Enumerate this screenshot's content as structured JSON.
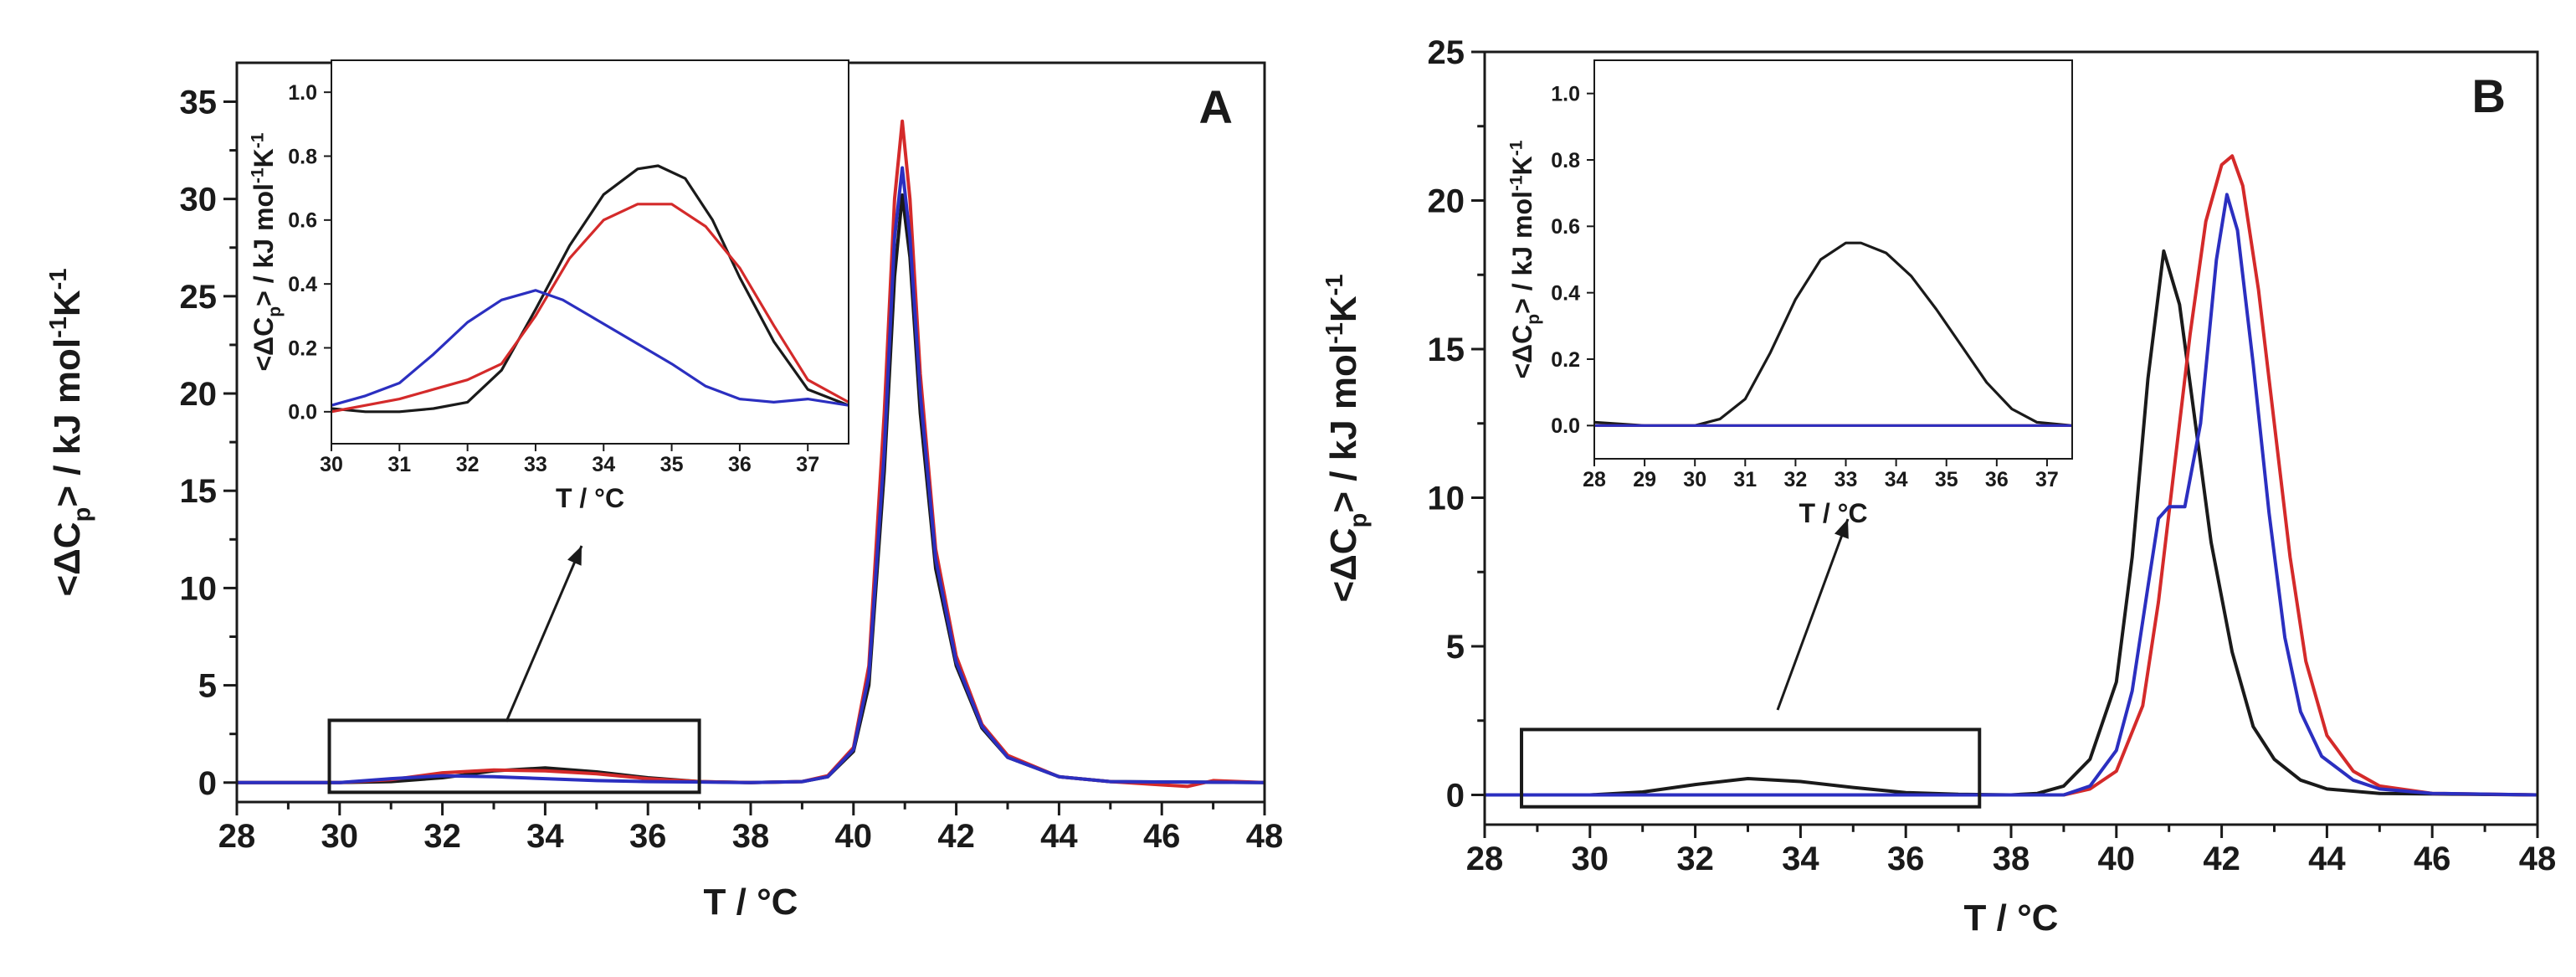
{
  "chart_data": [
    {
      "id": "A",
      "type": "line",
      "panel_label": "A",
      "xlabel": "T / °C",
      "ylabel": "<ΔC",
      "ylabel_sub": "p",
      "ylabel_units": "> / kJ mol",
      "ylabel_sup1": "-1",
      "ylabel_k": "K",
      "ylabel_sup2": "-1",
      "xlim": [
        28,
        48
      ],
      "ylim": [
        -1,
        37
      ],
      "xticks": [
        28,
        30,
        32,
        34,
        36,
        38,
        40,
        42,
        44,
        46,
        48
      ],
      "yticks": [
        0,
        5,
        10,
        15,
        20,
        25,
        30,
        35
      ],
      "highlight_box": {
        "x": [
          29.8,
          37.0
        ],
        "y": [
          -0.5,
          3.2
        ]
      },
      "series": [
        {
          "name": "black",
          "color": "#1a1a1a",
          "points": [
            [
              28,
              0
            ],
            [
              30,
              0
            ],
            [
              31,
              0.05
            ],
            [
              32,
              0.25
            ],
            [
              33,
              0.6
            ],
            [
              34,
              0.75
            ],
            [
              35,
              0.55
            ],
            [
              36,
              0.25
            ],
            [
              37,
              0.05
            ],
            [
              38,
              0
            ],
            [
              39,
              0.05
            ],
            [
              39.5,
              0.3
            ],
            [
              40,
              1.6
            ],
            [
              40.3,
              5
            ],
            [
              40.6,
              16
            ],
            [
              40.8,
              26
            ],
            [
              40.95,
              30.2
            ],
            [
              41.1,
              27
            ],
            [
              41.3,
              19
            ],
            [
              41.6,
              11
            ],
            [
              42,
              6
            ],
            [
              42.5,
              2.8
            ],
            [
              43,
              1.3
            ],
            [
              44,
              0.3
            ],
            [
              45,
              0.05
            ],
            [
              48,
              0
            ]
          ]
        },
        {
          "name": "red",
          "color": "#d42a2a",
          "points": [
            [
              28,
              0
            ],
            [
              30,
              0
            ],
            [
              31,
              0.15
            ],
            [
              32,
              0.5
            ],
            [
              33,
              0.65
            ],
            [
              34,
              0.6
            ],
            [
              35,
              0.45
            ],
            [
              36,
              0.2
            ],
            [
              37,
              0.05
            ],
            [
              38,
              0
            ],
            [
              39,
              0.05
            ],
            [
              39.5,
              0.35
            ],
            [
              40,
              1.8
            ],
            [
              40.3,
              6
            ],
            [
              40.6,
              19
            ],
            [
              40.8,
              30
            ],
            [
              40.95,
              34
            ],
            [
              41.1,
              30
            ],
            [
              41.3,
              21
            ],
            [
              41.6,
              12
            ],
            [
              42,
              6.5
            ],
            [
              42.5,
              3
            ],
            [
              43,
              1.4
            ],
            [
              44,
              0.3
            ],
            [
              45,
              0.05
            ],
            [
              46.5,
              -0.2
            ],
            [
              47,
              0.1
            ],
            [
              48,
              0
            ]
          ]
        },
        {
          "name": "blue",
          "color": "#2b2fc0",
          "points": [
            [
              28,
              0
            ],
            [
              30,
              0
            ],
            [
              31,
              0.2
            ],
            [
              32,
              0.35
            ],
            [
              33,
              0.3
            ],
            [
              34,
              0.2
            ],
            [
              35,
              0.1
            ],
            [
              36,
              0.05
            ],
            [
              37,
              0.03
            ],
            [
              38,
              0
            ],
            [
              39,
              0.05
            ],
            [
              39.5,
              0.3
            ],
            [
              40,
              1.7
            ],
            [
              40.3,
              5.5
            ],
            [
              40.6,
              17
            ],
            [
              40.8,
              28
            ],
            [
              40.95,
              31.6
            ],
            [
              41.1,
              28
            ],
            [
              41.3,
              20
            ],
            [
              41.6,
              11.5
            ],
            [
              42,
              6.2
            ],
            [
              42.5,
              2.9
            ],
            [
              43,
              1.3
            ],
            [
              44,
              0.3
            ],
            [
              45,
              0.05
            ],
            [
              48,
              0
            ]
          ]
        }
      ]
    },
    {
      "id": "A-inset",
      "type": "line",
      "xlabel": "T / °C",
      "ylabel": "<ΔC",
      "ylabel_sub": "p",
      "ylabel_units": "> / kJ mol",
      "ylabel_sup1": "-1",
      "ylabel_k": "K",
      "ylabel_sup2": "-1",
      "xlim": [
        30,
        37.6
      ],
      "ylim": [
        -0.1,
        1.1
      ],
      "xticks": [
        30,
        31,
        32,
        33,
        34,
        35,
        36,
        37
      ],
      "yticks": [
        "0.0",
        "0.2",
        "0.4",
        "0.6",
        "0.8",
        "1.0"
      ],
      "series": [
        {
          "name": "black",
          "color": "#1a1a1a",
          "points": [
            [
              30,
              0.01
            ],
            [
              30.5,
              0.0
            ],
            [
              31,
              0.0
            ],
            [
              31.5,
              0.01
            ],
            [
              32,
              0.03
            ],
            [
              32.5,
              0.13
            ],
            [
              33,
              0.32
            ],
            [
              33.5,
              0.52
            ],
            [
              34,
              0.68
            ],
            [
              34.5,
              0.76
            ],
            [
              34.8,
              0.77
            ],
            [
              35.2,
              0.73
            ],
            [
              35.6,
              0.6
            ],
            [
              36,
              0.42
            ],
            [
              36.5,
              0.22
            ],
            [
              37,
              0.07
            ],
            [
              37.6,
              0.02
            ]
          ]
        },
        {
          "name": "red",
          "color": "#d42a2a",
          "points": [
            [
              30,
              0.0
            ],
            [
              30.5,
              0.02
            ],
            [
              31,
              0.04
            ],
            [
              31.5,
              0.07
            ],
            [
              32,
              0.1
            ],
            [
              32.5,
              0.15
            ],
            [
              33,
              0.3
            ],
            [
              33.5,
              0.48
            ],
            [
              34,
              0.6
            ],
            [
              34.5,
              0.65
            ],
            [
              35,
              0.65
            ],
            [
              35.5,
              0.58
            ],
            [
              36,
              0.45
            ],
            [
              36.5,
              0.27
            ],
            [
              37,
              0.1
            ],
            [
              37.6,
              0.03
            ]
          ]
        },
        {
          "name": "blue",
          "color": "#2b2fc0",
          "points": [
            [
              30,
              0.02
            ],
            [
              30.5,
              0.05
            ],
            [
              31,
              0.09
            ],
            [
              31.5,
              0.18
            ],
            [
              32,
              0.28
            ],
            [
              32.5,
              0.35
            ],
            [
              33,
              0.38
            ],
            [
              33.4,
              0.35
            ],
            [
              33.8,
              0.3
            ],
            [
              34.2,
              0.25
            ],
            [
              34.6,
              0.2
            ],
            [
              35,
              0.15
            ],
            [
              35.5,
              0.08
            ],
            [
              36,
              0.04
            ],
            [
              36.5,
              0.03
            ],
            [
              37,
              0.04
            ],
            [
              37.6,
              0.02
            ]
          ]
        }
      ]
    },
    {
      "id": "B",
      "type": "line",
      "panel_label": "B",
      "xlabel": "T / °C",
      "ylabel": "<ΔC",
      "ylabel_sub": "p",
      "ylabel_units": "> / kJ mol",
      "ylabel_sup1": "-1",
      "ylabel_k": "K",
      "ylabel_sup2": "-1",
      "xlim": [
        28,
        48
      ],
      "ylim": [
        -1,
        25
      ],
      "xticks": [
        28,
        30,
        32,
        34,
        36,
        38,
        40,
        42,
        44,
        46,
        48
      ],
      "yticks": [
        0,
        5,
        10,
        15,
        20,
        25
      ],
      "highlight_box": {
        "x": [
          28.7,
          37.4
        ],
        "y": [
          -0.4,
          2.2
        ]
      },
      "series": [
        {
          "name": "black",
          "color": "#1a1a1a",
          "points": [
            [
              28,
              0
            ],
            [
              30,
              0
            ],
            [
              31,
              0.1
            ],
            [
              32,
              0.35
            ],
            [
              33,
              0.55
            ],
            [
              34,
              0.45
            ],
            [
              35,
              0.25
            ],
            [
              36,
              0.08
            ],
            [
              37,
              0.02
            ],
            [
              38,
              0
            ],
            [
              38.5,
              0.05
            ],
            [
              39,
              0.3
            ],
            [
              39.5,
              1.2
            ],
            [
              40,
              3.8
            ],
            [
              40.3,
              8
            ],
            [
              40.6,
              14
            ],
            [
              40.9,
              18.3
            ],
            [
              41.2,
              16.5
            ],
            [
              41.5,
              12.5
            ],
            [
              41.8,
              8.5
            ],
            [
              42.2,
              4.8
            ],
            [
              42.6,
              2.3
            ],
            [
              43,
              1.2
            ],
            [
              43.5,
              0.5
            ],
            [
              44,
              0.2
            ],
            [
              45,
              0.05
            ],
            [
              48,
              0
            ]
          ]
        },
        {
          "name": "red",
          "color": "#d42a2a",
          "points": [
            [
              28,
              0
            ],
            [
              39,
              0
            ],
            [
              39.5,
              0.2
            ],
            [
              40,
              0.8
            ],
            [
              40.5,
              3
            ],
            [
              40.8,
              6.5
            ],
            [
              41.1,
              11
            ],
            [
              41.4,
              15.5
            ],
            [
              41.7,
              19.3
            ],
            [
              42,
              21.2
            ],
            [
              42.2,
              21.5
            ],
            [
              42.4,
              20.5
            ],
            [
              42.7,
              17
            ],
            [
              43,
              12.5
            ],
            [
              43.3,
              8
            ],
            [
              43.6,
              4.5
            ],
            [
              44,
              2
            ],
            [
              44.5,
              0.8
            ],
            [
              45,
              0.3
            ],
            [
              46,
              0.05
            ],
            [
              48,
              0
            ]
          ]
        },
        {
          "name": "blue",
          "color": "#2b2fc0",
          "points": [
            [
              28,
              0
            ],
            [
              39,
              0
            ],
            [
              39.5,
              0.3
            ],
            [
              40,
              1.5
            ],
            [
              40.3,
              3.5
            ],
            [
              40.6,
              7
            ],
            [
              40.8,
              9.3
            ],
            [
              41,
              9.7
            ],
            [
              41.3,
              9.7
            ],
            [
              41.6,
              12.5
            ],
            [
              41.9,
              18
            ],
            [
              42.1,
              20.2
            ],
            [
              42.3,
              19
            ],
            [
              42.6,
              14.5
            ],
            [
              42.9,
              9.5
            ],
            [
              43.2,
              5.3
            ],
            [
              43.5,
              2.8
            ],
            [
              43.9,
              1.3
            ],
            [
              44.5,
              0.5
            ],
            [
              45,
              0.2
            ],
            [
              46,
              0.05
            ],
            [
              48,
              0
            ]
          ]
        }
      ]
    },
    {
      "id": "B-inset",
      "type": "line",
      "xlabel": "T / °C",
      "ylabel": "<ΔC",
      "ylabel_sub": "p",
      "ylabel_units": "> / kJ mol",
      "ylabel_sup1": "-1",
      "ylabel_k": "K",
      "ylabel_sup2": "-1",
      "xlim": [
        28,
        37.5
      ],
      "ylim": [
        -0.1,
        1.1
      ],
      "xticks": [
        28,
        29,
        30,
        31,
        32,
        33,
        34,
        35,
        36,
        37
      ],
      "yticks": [
        "0.0",
        "0.2",
        "0.4",
        "0.6",
        "0.8",
        "1.0"
      ],
      "series": [
        {
          "name": "black",
          "color": "#1a1a1a",
          "points": [
            [
              28,
              0.01
            ],
            [
              29,
              0.0
            ],
            [
              30,
              0.0
            ],
            [
              30.5,
              0.02
            ],
            [
              31,
              0.08
            ],
            [
              31.5,
              0.22
            ],
            [
              32,
              0.38
            ],
            [
              32.5,
              0.5
            ],
            [
              33,
              0.55
            ],
            [
              33.3,
              0.55
            ],
            [
              33.8,
              0.52
            ],
            [
              34.3,
              0.45
            ],
            [
              34.8,
              0.35
            ],
            [
              35.3,
              0.24
            ],
            [
              35.8,
              0.13
            ],
            [
              36.3,
              0.05
            ],
            [
              36.8,
              0.01
            ],
            [
              37.5,
              0.0
            ]
          ]
        },
        {
          "name": "red",
          "color": "#d42a2a",
          "points": [
            [
              28,
              0.0
            ],
            [
              37.5,
              0.0
            ]
          ]
        },
        {
          "name": "blue",
          "color": "#2b2fc0",
          "points": [
            [
              28,
              0.0
            ],
            [
              37.5,
              0.0
            ]
          ]
        }
      ]
    }
  ]
}
